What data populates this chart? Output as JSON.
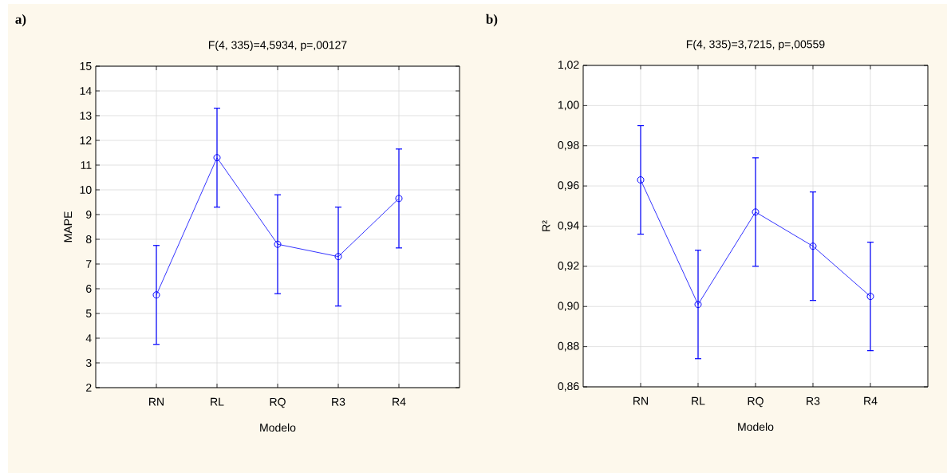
{
  "chart_data": [
    {
      "type": "line",
      "title": "F(4, 335)=4,5934, p=,00127",
      "xlabel": "Modelo",
      "ylabel": "MAPE",
      "annotations": [
        "a)"
      ],
      "categories": [
        "RN",
        "RL",
        "RQ",
        "R3",
        "R4"
      ],
      "series": [
        {
          "color": "#0000ff",
          "values": [
            5.75,
            11.3,
            7.8,
            7.3,
            9.65
          ],
          "errors": [
            2,
            2,
            2,
            2,
            2
          ]
        }
      ],
      "ylim": [
        2,
        15
      ],
      "yticks": [
        2,
        3,
        4,
        5,
        6,
        7,
        8,
        9,
        10,
        11,
        12,
        13,
        14,
        15
      ],
      "grid": true,
      "marker": "circle",
      "line_style": "solid"
    },
    {
      "type": "line",
      "title": "F(4, 335)=3,7215, p=,00559",
      "xlabel": "Modelo",
      "ylabel": "R²",
      "annotations": [
        "b)"
      ],
      "categories": [
        "RN",
        "RL",
        "RQ",
        "R3",
        "R4"
      ],
      "series": [
        {
          "color": "#0000ff",
          "values": [
            0.963,
            0.901,
            0.947,
            0.93,
            0.905
          ],
          "errors": [
            0.027,
            0.027,
            0.027,
            0.027,
            0.027
          ]
        }
      ],
      "ylim": [
        0.86,
        1.02
      ],
      "yticks": [
        {
          "value": 0.86,
          "label": "0,86"
        },
        {
          "value": 0.88,
          "label": "0,88"
        },
        {
          "value": 0.9,
          "label": "0,90"
        },
        {
          "value": 0.92,
          "label": "0,92"
        },
        {
          "value": 0.94,
          "label": "0,94"
        },
        {
          "value": 0.96,
          "label": "0,96"
        },
        {
          "value": 0.98,
          "label": "0,98"
        },
        {
          "value": 1.0,
          "label": "1,00"
        },
        {
          "value": 1.02,
          "label": "1,02"
        }
      ],
      "grid": true,
      "marker": "circle",
      "line_style": "solid"
    }
  ]
}
